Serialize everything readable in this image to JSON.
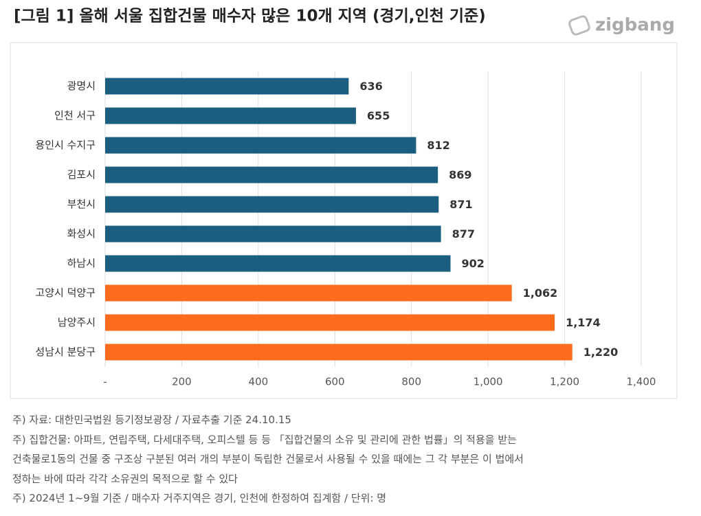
{
  "chart_data": {
    "type": "hbar",
    "title": "[그림 1] 올해 서울 집합건물 매수자 많은 10개 지역 (경기,인천 기준)",
    "brand": "zigbang",
    "categories": [
      "광명시",
      "인천 서구",
      "용인시 수지구",
      "김포시",
      "부천시",
      "화성시",
      "하남시",
      "고양시 덕양구",
      "남양주시",
      "성남시 분당구"
    ],
    "values": [
      636,
      655,
      812,
      869,
      871,
      877,
      902,
      1062,
      1174,
      1220
    ],
    "value_labels": [
      "636",
      "655",
      "812",
      "869",
      "871",
      "877",
      "902",
      "1,062",
      "1,174",
      "1,220"
    ],
    "colors": [
      "#1b5e80",
      "#1b5e80",
      "#1b5e80",
      "#1b5e80",
      "#1b5e80",
      "#1b5e80",
      "#1b5e80",
      "#ff6b1c",
      "#ff6b1c",
      "#ff6b1c"
    ],
    "xlim": [
      0,
      1400
    ],
    "xticks": [
      {
        "value": 0,
        "label": "-"
      },
      200,
      400,
      600,
      800,
      {
        "value": 1000,
        "label": "1,000"
      },
      {
        "value": 1200,
        "label": "1,200"
      },
      {
        "value": 1400,
        "label": "1,400"
      }
    ],
    "grid": true,
    "notes": [
      "주) 자료: 대한민국법원 등기정보광장 / 자료추출 기준 24.10.15",
      "주) 집합건물: 아파트, 연립주택, 다세대주택, 오피스텔 등 등 「집합건물의 소유 및 관리에 관한 법률」의 적용을 받는",
      "건축물로1동의 건물 중 구조상 구분된 여러 개의 부분이 독립한 건물로서 사용될 수 있을 때에는 그 각 부분은 이 법에서",
      "정하는 바에 따라 각각 소유권의 목적으로 할 수 있다",
      "주) 2024년 1~9월 기준 / 매수자 거주지역은 경기, 인천에 한정하여 집계함 / 단위: 명"
    ]
  }
}
